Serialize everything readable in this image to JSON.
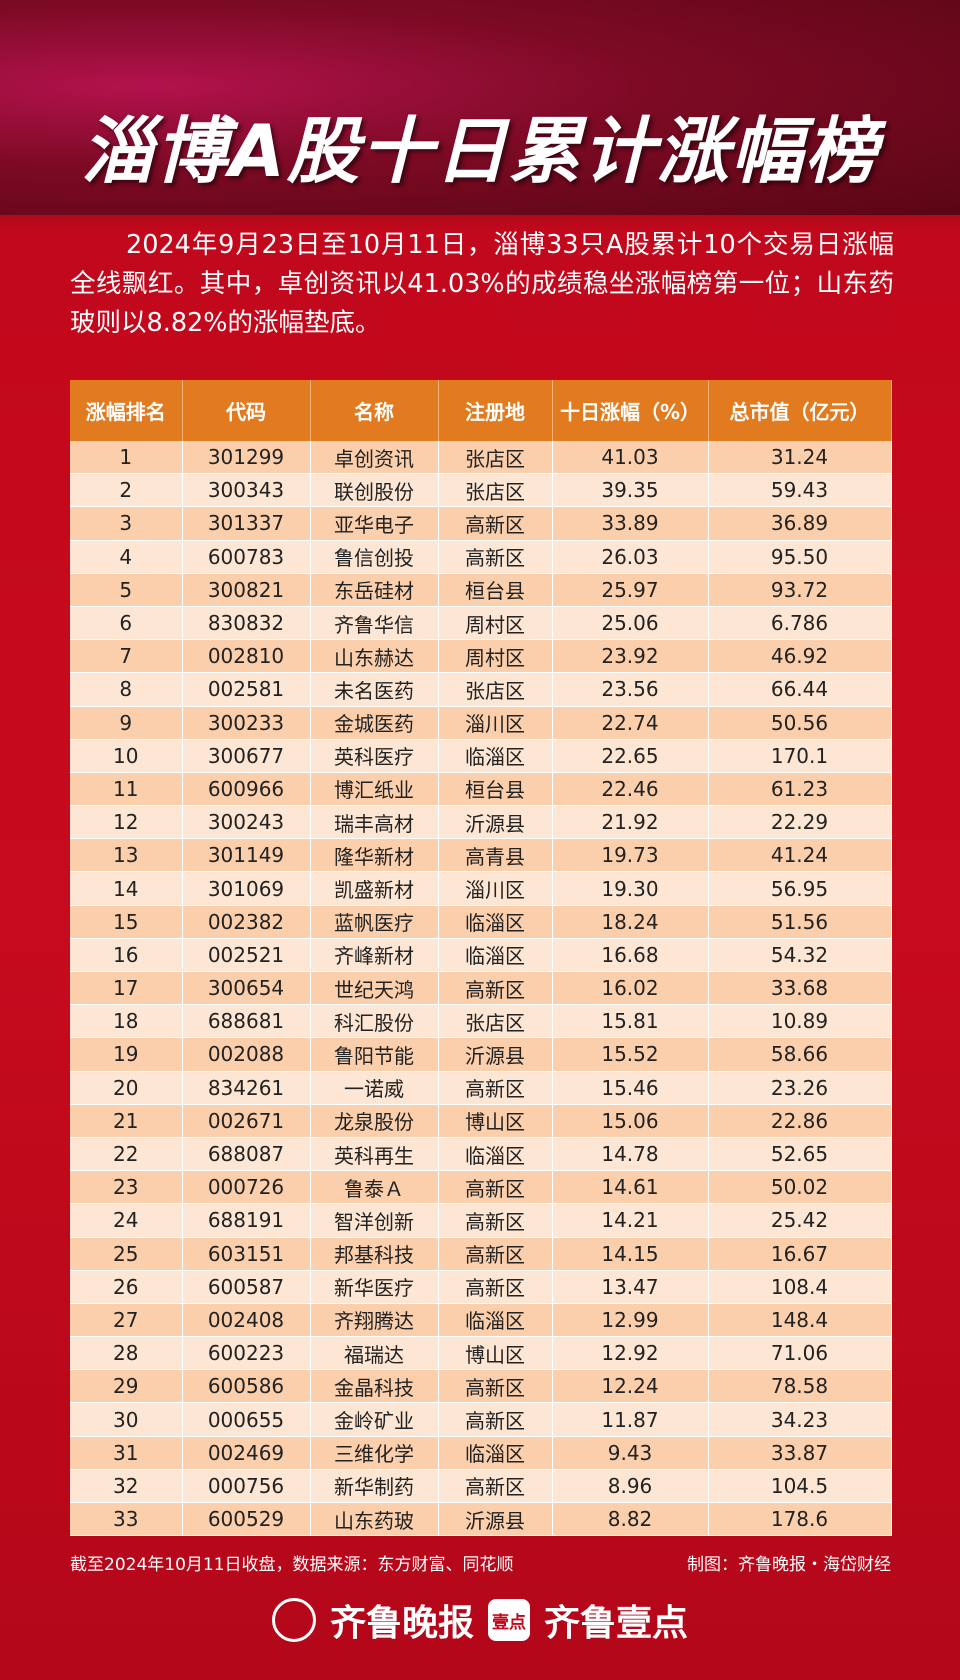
{
  "header": {
    "title": "淄博A股十日累计涨幅榜"
  },
  "intro": "2024年9月23日至10月11日，淄博33只A股累计10个交易日涨幅全线飘红。其中，卓创资讯以41.03%的成绩稳坐涨幅榜第一位；山东药玻则以8.82%的涨幅垫底。",
  "table": {
    "columns": [
      "涨幅排名",
      "代码",
      "名称",
      "注册地",
      "十日涨幅（%）",
      "总市值（亿元）"
    ],
    "rows": [
      [
        "1",
        "301299",
        "卓创资讯",
        "张店区",
        "41.03",
        "31.24"
      ],
      [
        "2",
        "300343",
        "联创股份",
        "张店区",
        "39.35",
        "59.43"
      ],
      [
        "3",
        "301337",
        "亚华电子",
        "高新区",
        "33.89",
        "36.89"
      ],
      [
        "4",
        "600783",
        "鲁信创投",
        "高新区",
        "26.03",
        "95.50"
      ],
      [
        "5",
        "300821",
        "东岳硅材",
        "桓台县",
        "25.97",
        "93.72"
      ],
      [
        "6",
        "830832",
        "齐鲁华信",
        "周村区",
        "25.06",
        "6.786"
      ],
      [
        "7",
        "002810",
        "山东赫达",
        "周村区",
        "23.92",
        "46.92"
      ],
      [
        "8",
        "002581",
        "未名医药",
        "张店区",
        "23.56",
        "66.44"
      ],
      [
        "9",
        "300233",
        "金城医药",
        "淄川区",
        "22.74",
        "50.56"
      ],
      [
        "10",
        "300677",
        "英科医疗",
        "临淄区",
        "22.65",
        "170.1"
      ],
      [
        "11",
        "600966",
        "博汇纸业",
        "桓台县",
        "22.46",
        "61.23"
      ],
      [
        "12",
        "300243",
        "瑞丰高材",
        "沂源县",
        "21.92",
        "22.29"
      ],
      [
        "13",
        "301149",
        "隆华新材",
        "高青县",
        "19.73",
        "41.24"
      ],
      [
        "14",
        "301069",
        "凯盛新材",
        "淄川区",
        "19.30",
        "56.95"
      ],
      [
        "15",
        "002382",
        "蓝帆医疗",
        "临淄区",
        "18.24",
        "51.56"
      ],
      [
        "16",
        "002521",
        "齐峰新材",
        "临淄区",
        "16.68",
        "54.32"
      ],
      [
        "17",
        "300654",
        "世纪天鸿",
        "高新区",
        "16.02",
        "33.68"
      ],
      [
        "18",
        "688681",
        "科汇股份",
        "张店区",
        "15.81",
        "10.89"
      ],
      [
        "19",
        "002088",
        "鲁阳节能",
        "沂源县",
        "15.52",
        "58.66"
      ],
      [
        "20",
        "834261",
        "一诺威",
        "高新区",
        "15.46",
        "23.26"
      ],
      [
        "21",
        "002671",
        "龙泉股份",
        "博山区",
        "15.06",
        "22.86"
      ],
      [
        "22",
        "688087",
        "英科再生",
        "临淄区",
        "14.78",
        "52.65"
      ],
      [
        "23",
        "000726",
        "鲁泰Ａ",
        "高新区",
        "14.61",
        "50.02"
      ],
      [
        "24",
        "688191",
        "智洋创新",
        "高新区",
        "14.21",
        "25.42"
      ],
      [
        "25",
        "603151",
        "邦基科技",
        "高新区",
        "14.15",
        "16.67"
      ],
      [
        "26",
        "600587",
        "新华医疗",
        "高新区",
        "13.47",
        "108.4"
      ],
      [
        "27",
        "002408",
        "齐翔腾达",
        "临淄区",
        "12.99",
        "148.4"
      ],
      [
        "28",
        "600223",
        "福瑞达",
        "博山区",
        "12.92",
        "71.06"
      ],
      [
        "29",
        "600586",
        "金晶科技",
        "高新区",
        "12.24",
        "78.58"
      ],
      [
        "30",
        "000655",
        "金岭矿业",
        "高新区",
        "11.87",
        "34.23"
      ],
      [
        "31",
        "002469",
        "三维化学",
        "临淄区",
        "9.43",
        "33.87"
      ],
      [
        "32",
        "000756",
        "新华制药",
        "高新区",
        "8.96",
        "104.5"
      ],
      [
        "33",
        "600529",
        "山东药玻",
        "沂源县",
        "8.82",
        "178.6"
      ]
    ]
  },
  "footer": {
    "source": "截至2024年10月11日收盘，数据来源：东方财富、同花顺",
    "credit": "制图：齐鲁晚报・海岱财经",
    "logo_left": "齐鲁晚报",
    "logo_icon": "壹点",
    "logo_right": "齐鲁壹点"
  }
}
